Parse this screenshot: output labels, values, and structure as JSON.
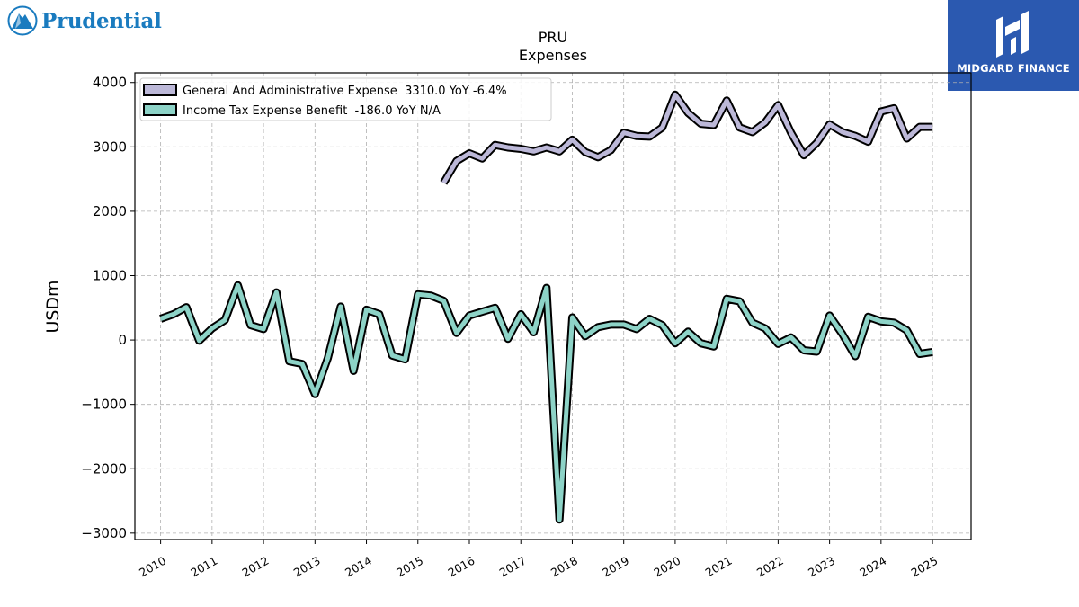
{
  "branding": {
    "left_logo_text": "Prudential",
    "right_logo_text": "MIDGARD FINANCE",
    "right_logo_bg": "#2b59b0",
    "left_logo_color": "#1a7bbf"
  },
  "chart_data": {
    "type": "line",
    "title": "PRU",
    "subtitle": "Expenses",
    "ylabel": "USDm",
    "xlabel": "",
    "xlim": [
      2009.5,
      2025.75
    ],
    "ylim": [
      -3100,
      4150
    ],
    "yticks": [
      -3000,
      -2000,
      -1000,
      0,
      1000,
      2000,
      3000,
      4000
    ],
    "xticks": [
      2010,
      2011,
      2012,
      2013,
      2014,
      2015,
      2016,
      2017,
      2018,
      2019,
      2020,
      2021,
      2022,
      2023,
      2024,
      2025
    ],
    "grid": true,
    "legend_position": "upper-left",
    "series": [
      {
        "name": "General And Administrative Expense  3310.0 YoY -6.4%",
        "color": "#bcb8d8",
        "x": [
          2015.5,
          2015.75,
          2016.0,
          2016.25,
          2016.5,
          2016.75,
          2017.0,
          2017.25,
          2017.5,
          2017.75,
          2018.0,
          2018.25,
          2018.5,
          2018.75,
          2019.0,
          2019.25,
          2019.5,
          2019.75,
          2020.0,
          2020.25,
          2020.5,
          2020.75,
          2021.0,
          2021.25,
          2021.5,
          2021.75,
          2022.0,
          2022.25,
          2022.5,
          2022.75,
          2023.0,
          2023.25,
          2023.5,
          2023.75,
          2024.0,
          2024.25,
          2024.5,
          2024.75,
          2025.0
        ],
        "values": [
          2440,
          2780,
          2900,
          2820,
          3030,
          2990,
          2970,
          2930,
          2990,
          2930,
          3110,
          2920,
          2840,
          2950,
          3220,
          3170,
          3160,
          3300,
          3810,
          3530,
          3360,
          3340,
          3720,
          3300,
          3230,
          3380,
          3650,
          3220,
          2870,
          3060,
          3350,
          3230,
          3170,
          3080,
          3550,
          3600,
          3130,
          3310,
          3310
        ]
      },
      {
        "name": "Income Tax Expense Benefit  -186.0 YoY N/A",
        "color": "#8dd3c7",
        "x": [
          2010.0,
          2010.25,
          2010.5,
          2010.75,
          2011.0,
          2011.25,
          2011.5,
          2011.75,
          2012.0,
          2012.25,
          2012.5,
          2012.75,
          2013.0,
          2013.25,
          2013.5,
          2013.75,
          2014.0,
          2014.25,
          2014.5,
          2014.75,
          2015.0,
          2015.25,
          2015.5,
          2015.75,
          2016.0,
          2016.25,
          2016.5,
          2016.75,
          2017.0,
          2017.25,
          2017.5,
          2017.75,
          2018.0,
          2018.25,
          2018.5,
          2018.75,
          2019.0,
          2019.25,
          2019.5,
          2019.75,
          2020.0,
          2020.25,
          2020.5,
          2020.75,
          2021.0,
          2021.25,
          2021.5,
          2021.75,
          2022.0,
          2022.25,
          2022.5,
          2022.75,
          2023.0,
          2023.25,
          2023.5,
          2023.75,
          2024.0,
          2024.25,
          2024.5,
          2024.75,
          2025.0
        ],
        "values": [
          330,
          400,
          510,
          -10,
          180,
          310,
          850,
          230,
          170,
          740,
          -330,
          -370,
          -840,
          -280,
          520,
          -480,
          470,
          400,
          -240,
          -300,
          710,
          690,
          610,
          110,
          380,
          440,
          500,
          20,
          400,
          120,
          810,
          -2790,
          350,
          60,
          200,
          240,
          240,
          170,
          330,
          230,
          -50,
          130,
          -50,
          -100,
          640,
          600,
          270,
          180,
          -60,
          40,
          -160,
          -180,
          380,
          90,
          -250,
          360,
          290,
          270,
          150,
          -215,
          -186
        ]
      }
    ]
  }
}
